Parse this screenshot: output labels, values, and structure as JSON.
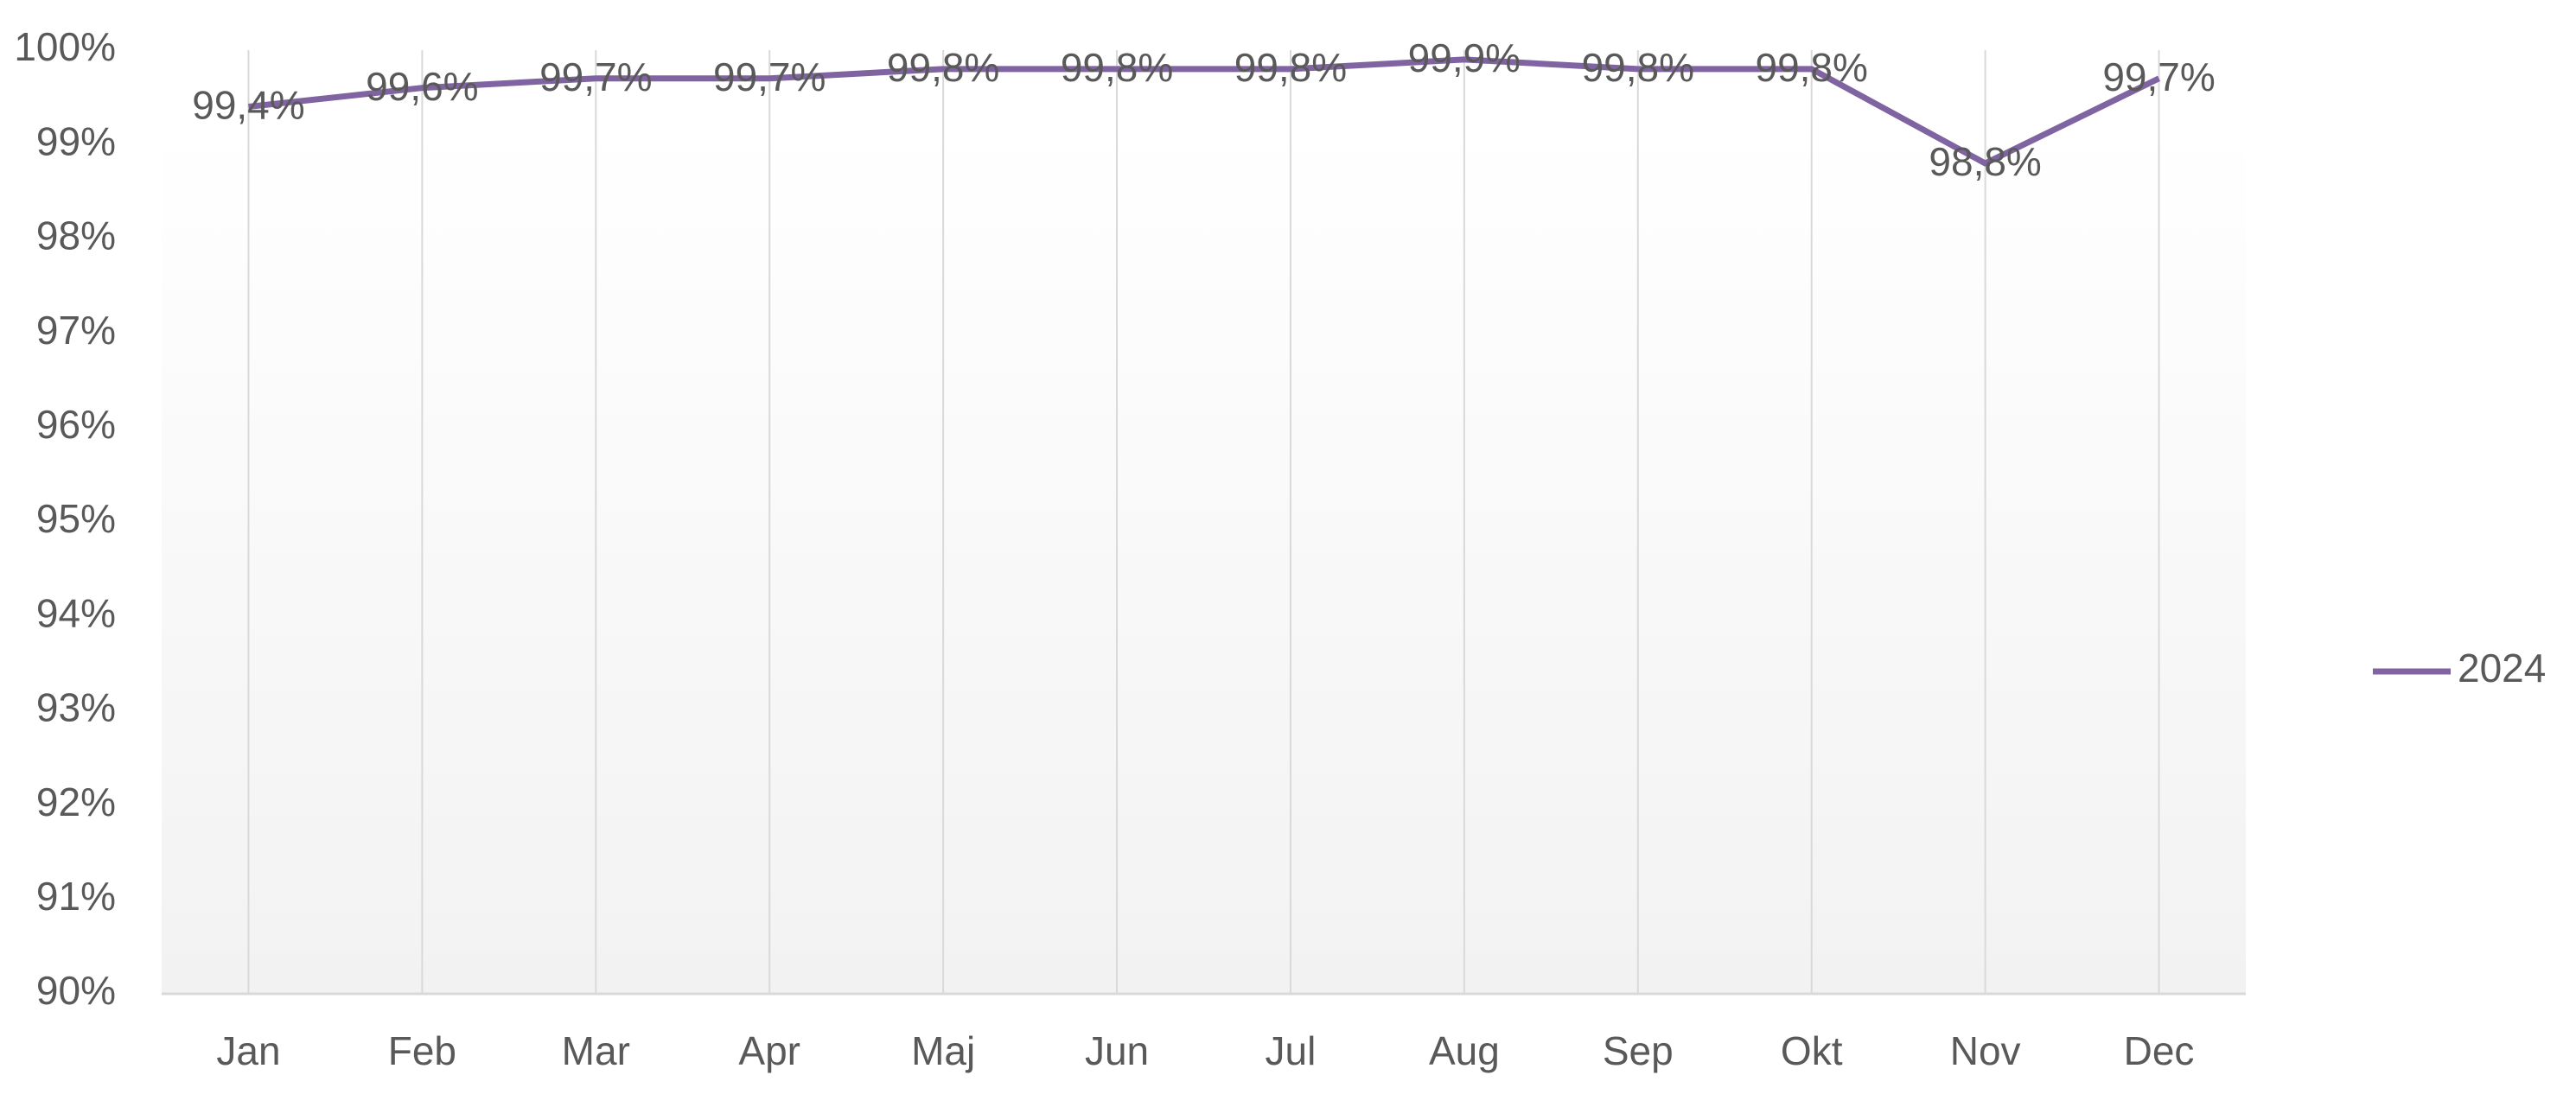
{
  "chart_data": {
    "type": "line",
    "categories": [
      "Jan",
      "Feb",
      "Mar",
      "Apr",
      "Maj",
      "Jun",
      "Jul",
      "Aug",
      "Sep",
      "Okt",
      "Nov",
      "Dec"
    ],
    "series": [
      {
        "name": "2024",
        "color": "#8064a2",
        "values": [
          99.4,
          99.6,
          99.7,
          99.7,
          99.8,
          99.8,
          99.8,
          99.9,
          99.8,
          99.8,
          98.8,
          99.7
        ],
        "value_labels": [
          "99,4%",
          "99,6%",
          "99,7%",
          "99,7%",
          "99,8%",
          "99,8%",
          "99,8%",
          "99,9%",
          "99,8%",
          "99,8%",
          "98,8%",
          "99,7%"
        ]
      }
    ],
    "ylim": [
      90,
      100
    ],
    "yticks": [
      {
        "value": 90,
        "label": "90%"
      },
      {
        "value": 91,
        "label": "91%"
      },
      {
        "value": 92,
        "label": "92%"
      },
      {
        "value": 93,
        "label": "93%"
      },
      {
        "value": 94,
        "label": "94%"
      },
      {
        "value": 95,
        "label": "95%"
      },
      {
        "value": 96,
        "label": "96%"
      },
      {
        "value": 97,
        "label": "97%"
      },
      {
        "value": 98,
        "label": "98%"
      },
      {
        "value": 99,
        "label": "99%"
      },
      {
        "value": 100,
        "label": "100%"
      }
    ],
    "grid": "x",
    "legend": "right"
  }
}
